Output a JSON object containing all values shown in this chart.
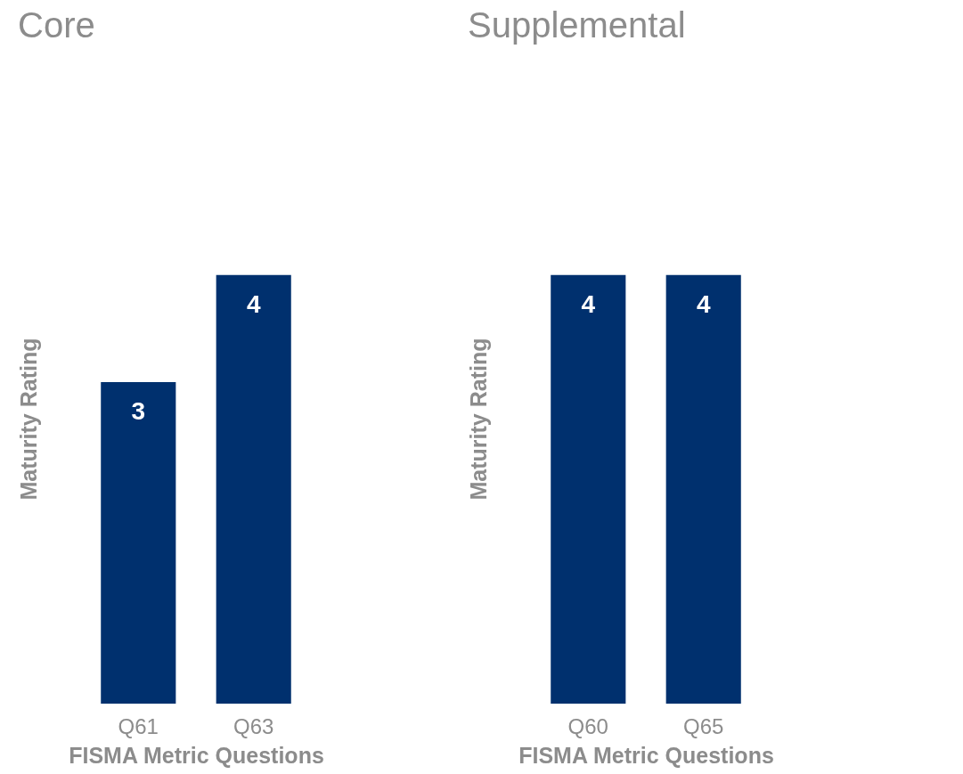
{
  "chart_data": [
    {
      "type": "bar",
      "title": "Core",
      "categories": [
        "Q61",
        "Q63"
      ],
      "values": [
        3,
        4
      ],
      "color": "#00306e",
      "xlabel": "FISMA Metric Questions",
      "ylabel": "Maturity Rating",
      "data_labels": true,
      "grid": false
    },
    {
      "type": "bar",
      "title": "Supplemental",
      "categories": [
        "Q60",
        "Q65"
      ],
      "values": [
        4,
        4
      ],
      "color": "#00306e",
      "xlabel": "FISMA Metric Questions",
      "ylabel": "Maturity Rating",
      "data_labels": true,
      "grid": false
    }
  ]
}
